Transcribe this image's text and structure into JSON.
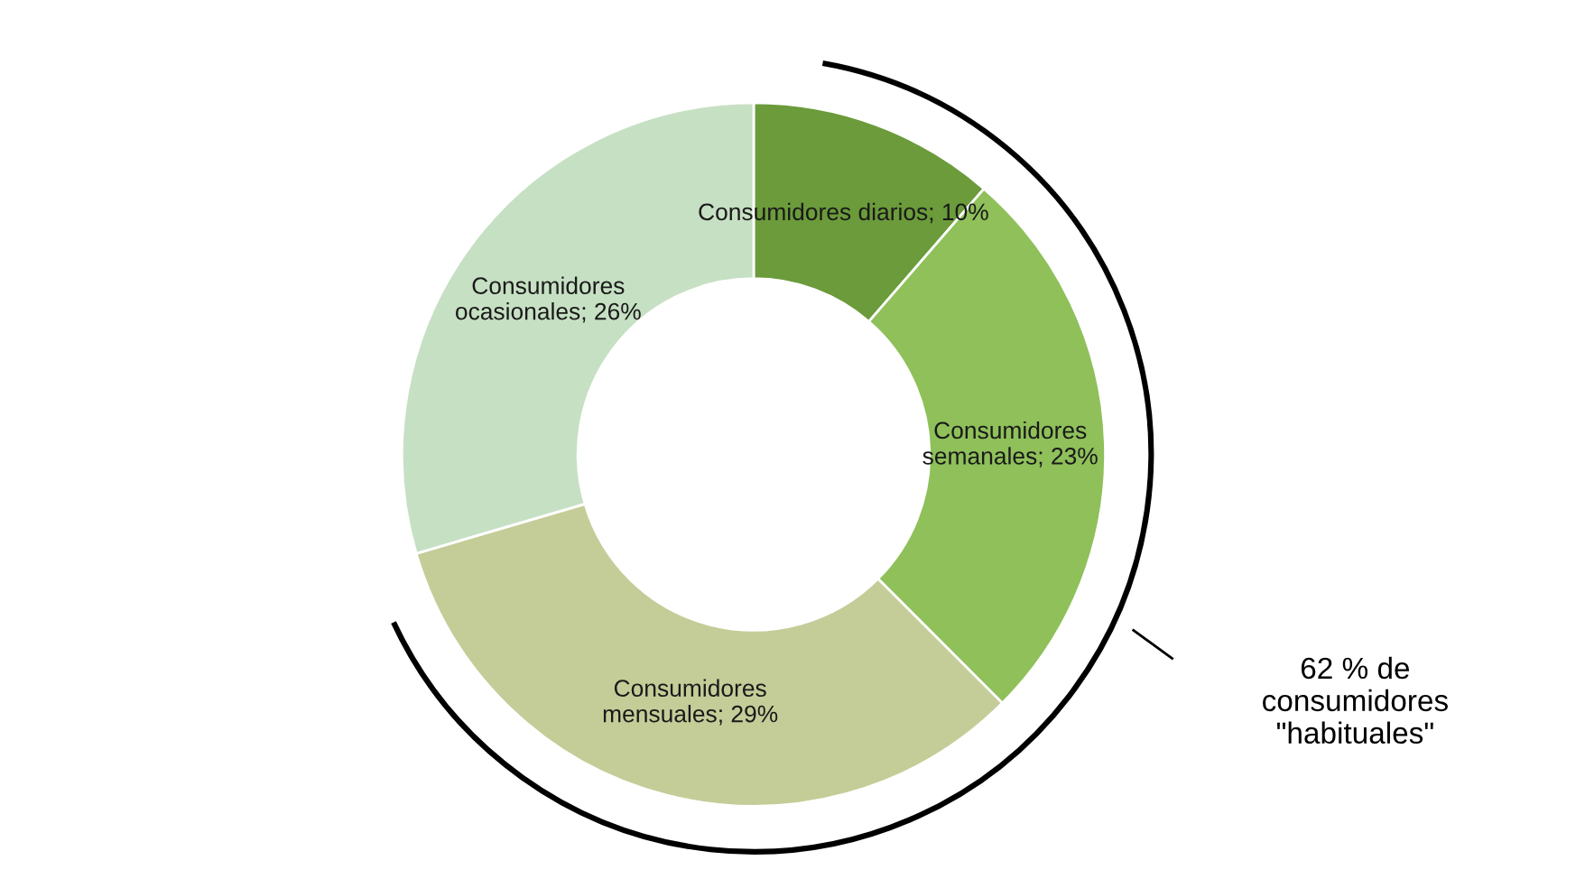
{
  "chart_data": {
    "type": "donut",
    "categories": [
      "Consumidores diarios",
      "Consumidores\nsemanales",
      "Consumidores\nmensuales",
      "Consumidores\nocasionales"
    ],
    "values": [
      10,
      23,
      29,
      26
    ],
    "value_labels": [
      "10%",
      "23%",
      "29%",
      "26%"
    ],
    "colors": [
      "#6b9b3a",
      "#8fc05a",
      "#c4cd98",
      "#c6e0c3"
    ],
    "legend": false,
    "annotations": [
      "62 % de\nconsumidores\n\"habituales\""
    ]
  }
}
